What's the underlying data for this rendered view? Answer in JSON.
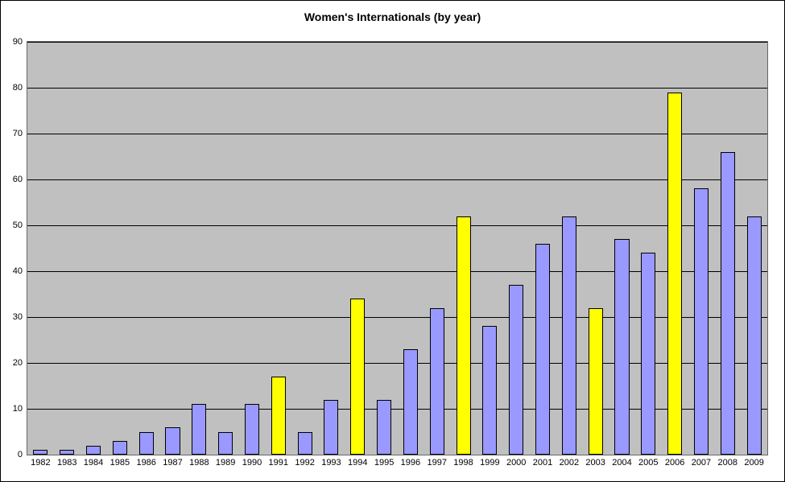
{
  "chart": {
    "type": "bar",
    "title": "Women's Internationals (by year)",
    "title_fontsize": 14,
    "background_color": "#ffffff",
    "plot_background_color": "#c0c0c0",
    "grid_color": "#000000",
    "axis_color": "#666666",
    "ylim": [
      0,
      90
    ],
    "ytick_step": 10,
    "yticks": [
      0,
      10,
      20,
      30,
      40,
      50,
      60,
      70,
      80,
      90
    ],
    "label_fontsize": 11,
    "bar_width_ratio": 0.55,
    "bar_border_color": "#000000",
    "categories": [
      "1982",
      "1983",
      "1984",
      "1985",
      "1986",
      "1987",
      "1988",
      "1989",
      "1990",
      "1991",
      "1992",
      "1993",
      "1994",
      "1995",
      "1996",
      "1997",
      "1998",
      "1999",
      "2000",
      "2001",
      "2002",
      "2003",
      "2004",
      "2005",
      "2006",
      "2007",
      "2008",
      "2009"
    ],
    "values": [
      1,
      1,
      2,
      3,
      5,
      6,
      11,
      5,
      11,
      17,
      5,
      12,
      34,
      12,
      23,
      32,
      52,
      28,
      37,
      46,
      52,
      32,
      47,
      44,
      79,
      58,
      66,
      52
    ],
    "highlight_indices": [
      9,
      12,
      16,
      21,
      24
    ],
    "colors": {
      "normal": "#9999ff",
      "highlight": "#ffff00"
    }
  }
}
